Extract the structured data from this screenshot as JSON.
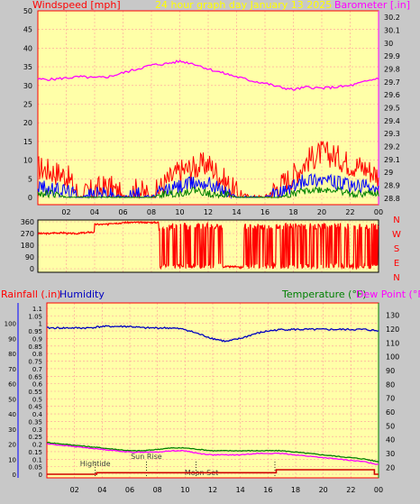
{
  "header": {
    "left_title": "Windspeed [mph]",
    "center_title": "24 hour graph day   January 13 2025",
    "right_title": "Barometer [.in]"
  },
  "lower_header": {
    "rain_label": "Rainfall (.in)",
    "humidity_label": "Humidity",
    "temp_label": "Temperature (°F)",
    "dew_label": "Dew Point (°F)"
  },
  "colors": {
    "background": "#c8c8c8",
    "plot_bg": "#ffffa8",
    "grid": "#ff9c9c",
    "wind_speed": "#ff0000",
    "wind_avg": "#0000ff",
    "wind_low": "#008000",
    "barometer": "#ff00ff",
    "direction": "#ff0000",
    "humidity": "#0000c0",
    "temperature": "#008000",
    "dew_point": "#ff00ff",
    "rain": "#d00000"
  },
  "chart_data": [
    {
      "type": "line",
      "panel": "wind_barometer",
      "x_ticks": [
        "02",
        "04",
        "06",
        "08",
        "10",
        "12",
        "14",
        "16",
        "18",
        "20",
        "22",
        "00"
      ],
      "y_left_ticks": [
        "0",
        "5",
        "10",
        "15",
        "20",
        "25",
        "30",
        "35",
        "40",
        "45",
        "50"
      ],
      "y_left_range": [
        0,
        50
      ],
      "y_right_ticks": [
        "28.8",
        "28.9",
        "29",
        "29.1",
        "29.2",
        "29.3",
        "29.4",
        "29.5",
        "29.6",
        "29.7",
        "29.8",
        "29.9",
        "30",
        "30.1",
        "30.2"
      ],
      "y_right_range": [
        28.75,
        30.25
      ],
      "x_range_hours": [
        0,
        24
      ],
      "grid": true,
      "series": [
        {
          "name": "Barometer",
          "axis": "right",
          "x": [
            0,
            1,
            2,
            3,
            4,
            5,
            6,
            7,
            8,
            9,
            10,
            11,
            12,
            13,
            14,
            15,
            16,
            17,
            18,
            19,
            20,
            21,
            22,
            23,
            24
          ],
          "y": [
            29.72,
            29.72,
            29.73,
            29.74,
            29.73,
            29.74,
            29.77,
            29.8,
            29.83,
            29.84,
            29.86,
            29.84,
            29.8,
            29.77,
            29.74,
            29.71,
            29.69,
            29.66,
            29.64,
            29.66,
            29.65,
            29.66,
            29.67,
            29.7,
            29.73
          ]
        },
        {
          "axis": "left",
          "x": [
            0,
            1,
            2,
            3,
            4,
            5,
            6,
            7,
            8,
            9,
            10,
            11,
            12,
            13,
            14,
            15,
            16,
            17,
            18,
            19,
            20,
            21,
            22,
            23,
            24
          ],
          "y": [
            8,
            7,
            6,
            0,
            2,
            3,
            0,
            2,
            0,
            4,
            7,
            8,
            9,
            5,
            1,
            0,
            0,
            3,
            6,
            10,
            12,
            11,
            9,
            8,
            6
          ]
        },
        {
          "axis": "left",
          "x": [
            0,
            1,
            2,
            3,
            4,
            5,
            6,
            7,
            8,
            9,
            10,
            11,
            12,
            13,
            14,
            15,
            16,
            17,
            18,
            19,
            20,
            21,
            22,
            23,
            24
          ],
          "y": [
            3,
            2,
            2,
            0,
            1,
            1,
            0,
            1,
            0,
            2,
            3,
            4,
            4,
            2,
            0,
            0,
            0,
            1,
            3,
            5,
            5,
            4,
            3,
            3,
            2
          ]
        },
        {
          "axis": "left",
          "x": [
            0,
            1,
            2,
            3,
            4,
            5,
            6,
            7,
            8,
            9,
            10,
            11,
            12,
            13,
            14,
            15,
            16,
            17,
            18,
            19,
            20,
            21,
            22,
            23,
            24
          ],
          "y": [
            1,
            1,
            0,
            0,
            0,
            0,
            0,
            0,
            0,
            1,
            1,
            2,
            1,
            1,
            0,
            0,
            0,
            0,
            1,
            2,
            2,
            2,
            1,
            1,
            1
          ]
        }
      ]
    },
    {
      "type": "line",
      "panel": "wind_direction",
      "y_left_ticks": [
        "0",
        "90",
        "180",
        "270",
        "360"
      ],
      "y_left_range": [
        0,
        360
      ],
      "y_right_labels": [
        "N",
        "W",
        "S",
        "E",
        "N"
      ],
      "x_range_hours": [
        0,
        24
      ],
      "grid": true,
      "series": [
        {
          "name": "Direction",
          "x": [
            0,
            1,
            2,
            3,
            3.5,
            4,
            5,
            6,
            7,
            8,
            8.5,
            9,
            9.5,
            10,
            10.5,
            11,
            11.5,
            12,
            12.5,
            13,
            14,
            15,
            15.5,
            16,
            16.5,
            17,
            17.5,
            18,
            18.5,
            19,
            19.5,
            20,
            20.5,
            21,
            21.5,
            22,
            22.5,
            23,
            23.5,
            24
          ],
          "y": [
            270,
            275,
            270,
            275,
            280,
            340,
            350,
            355,
            355,
            355,
            300,
            20,
            300,
            10,
            310,
            20,
            330,
            15,
            320,
            15,
            10,
            10,
            320,
            20,
            330,
            340,
            15,
            330,
            20,
            340,
            15,
            330,
            20,
            320,
            30,
            340,
            300,
            290,
            320,
            300
          ]
        }
      ]
    },
    {
      "type": "line",
      "panel": "rain_humidity_temp",
      "x_ticks": [
        "02",
        "04",
        "06",
        "08",
        "10",
        "12",
        "14",
        "16",
        "18",
        "20",
        "22",
        "00"
      ],
      "y_left_ticks": [
        "0",
        "0.05",
        "0.1",
        "0.15",
        "0.2",
        "0.25",
        "0.3",
        "0.35",
        "0.4",
        "0.45",
        "0.5",
        "0.55",
        "0.6",
        "0.65",
        "0.7",
        "0.75",
        "0.8",
        "0.85",
        "0.9",
        "0.95",
        "1",
        "1.05",
        "1.1"
      ],
      "y_left_humidity_ticks": [
        "0",
        "10",
        "20",
        "30",
        "40",
        "50",
        "60",
        "70",
        "80",
        "90",
        "100"
      ],
      "y_left_range": [
        0,
        1.1
      ],
      "y_right_ticks": [
        "20",
        "30",
        "40",
        "50",
        "60",
        "70",
        "80",
        "90",
        "100",
        "110",
        "120",
        "130"
      ],
      "y_right_range": [
        15,
        135
      ],
      "x_range_hours": [
        0,
        24
      ],
      "grid": true,
      "annotations": [
        {
          "text": "Hightide",
          "x": 3.5
        },
        {
          "text": "Sun Rise",
          "x": 7.2
        },
        {
          "text": "Moon Set",
          "x": 10.8
        },
        {
          "text": "",
          "x": 16.5
        }
      ],
      "series": [
        {
          "name": "Humidity",
          "axis": "humidity",
          "x": [
            0,
            1,
            2,
            3,
            4,
            5,
            6,
            7,
            8,
            9,
            10,
            11,
            12,
            13,
            14,
            15,
            16,
            17,
            18,
            19,
            20,
            21,
            22,
            23,
            24
          ],
          "y": [
            97,
            97,
            97,
            97,
            98,
            98,
            98,
            97,
            97,
            97,
            96,
            93,
            90,
            88,
            90,
            93,
            95,
            96,
            96,
            96,
            96,
            96,
            96,
            96,
            95
          ]
        },
        {
          "name": "Temperature (°F)",
          "axis": "right",
          "x": [
            0,
            1,
            2,
            3,
            4,
            5,
            6,
            7,
            8,
            9,
            10,
            11,
            12,
            13,
            14,
            15,
            16,
            17,
            18,
            19,
            20,
            21,
            22,
            23,
            24
          ],
          "y": [
            38,
            37,
            36,
            35,
            34,
            33,
            32,
            32,
            33,
            34,
            34,
            33,
            32,
            32,
            32,
            32,
            32,
            32,
            31,
            30,
            29,
            28,
            27,
            26,
            24
          ]
        },
        {
          "name": "Dew Point (°F)",
          "axis": "right",
          "x": [
            0,
            1,
            2,
            3,
            4,
            5,
            6,
            7,
            8,
            9,
            10,
            11,
            12,
            13,
            14,
            15,
            16,
            17,
            18,
            19,
            20,
            21,
            22,
            23,
            24
          ],
          "y": [
            37,
            36,
            35,
            34,
            33,
            32,
            31,
            31,
            31,
            32,
            32,
            30,
            29,
            29,
            29,
            30,
            30,
            30,
            29,
            28,
            27,
            26,
            25,
            24,
            22
          ]
        },
        {
          "name": "Rainfall (.in)",
          "axis": "left",
          "x": [
            0,
            2,
            3.5,
            3.6,
            8,
            10,
            12,
            14,
            16,
            16.5,
            16.6,
            18,
            20,
            22,
            23.6,
            23.7,
            24
          ],
          "y": [
            0,
            0,
            0,
            0.01,
            0.01,
            0.01,
            0.01,
            0.01,
            0.01,
            0.01,
            0.03,
            0.03,
            0.03,
            0.03,
            0.03,
            0,
            0
          ]
        }
      ]
    }
  ]
}
